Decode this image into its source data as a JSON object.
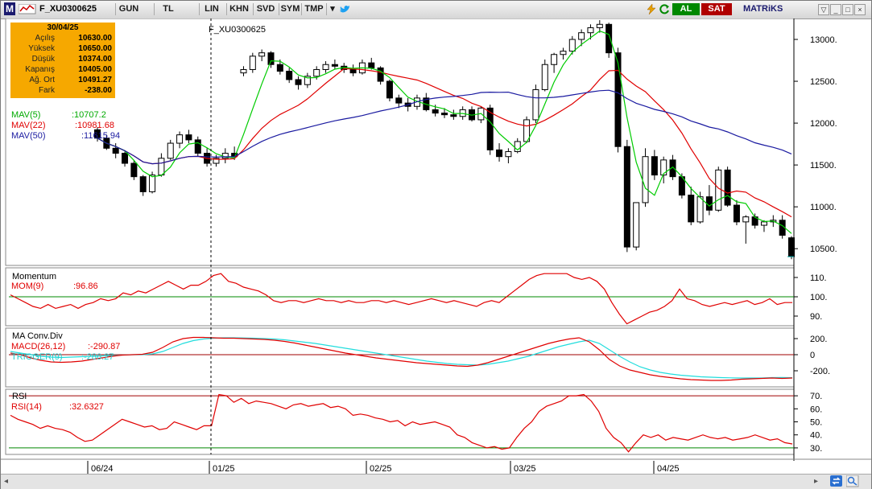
{
  "toolbar": {
    "logo": "M",
    "symbol": "F_XU0300625",
    "buttons": [
      "GUN",
      "TL",
      "LIN",
      "KHN",
      "SVD",
      "SYM",
      "TMP"
    ],
    "buy_label": "AL",
    "sell_label": "SAT",
    "brand": "MATRiKS",
    "brand_color": "#1a1a6e",
    "buy_color": "#008800",
    "sell_color": "#b00000"
  },
  "info": {
    "date": "30/04/25",
    "rows": [
      {
        "label": "Açılış",
        "value": "10630.00"
      },
      {
        "label": "Yüksek",
        "value": "10650.00"
      },
      {
        "label": "Düşük",
        "value": "10374.00"
      },
      {
        "label": "Kapanış",
        "value": "10405.00"
      },
      {
        "label": "Ağ. Ort",
        "value": "10491.27"
      },
      {
        "label": "Fark",
        "value": "-238.00"
      }
    ]
  },
  "price_panel": {
    "symbol_label": "F_XU0300625",
    "legends": [
      {
        "name": "MAV(5)",
        "value": ":10707.2",
        "color": "#00cc00"
      },
      {
        "name": "MAV(22)",
        "value": ":10981.68",
        "color": "#e00000"
      },
      {
        "name": "MAV(50)",
        "value": ":11615.94",
        "color": "#1a1aa0"
      }
    ],
    "y_ticks": [
      "13000.",
      "12500.",
      "12000.",
      "11500.",
      "11000.",
      "10500."
    ]
  },
  "momentum_panel": {
    "title": "Momentum",
    "legend": {
      "name": "MOM(9)",
      "value": ":96.86",
      "color": "#e00000"
    },
    "y_ticks": [
      "110.",
      "100.",
      "90."
    ]
  },
  "macd_panel": {
    "title": "MA Conv.Div",
    "legends": [
      {
        "name": "MACD(26,12)",
        "value": ":-290.87",
        "color": "#e00000"
      },
      {
        "name": "TRIGGER(9)",
        "value": ":-286.27",
        "color": "#22dddd"
      }
    ],
    "y_ticks": [
      "200.",
      "0",
      "-200."
    ]
  },
  "rsi_panel": {
    "title": "RSI",
    "legend": {
      "name": "RSI(14)",
      "value": ":32.6327",
      "color": "#e00000"
    },
    "y_ticks": [
      "70.",
      "60.",
      "50.",
      "40.",
      "30."
    ]
  },
  "x_axis": {
    "labels": [
      "06/24",
      "01/25",
      "02/25",
      "03/25",
      "04/25"
    ]
  },
  "chart_data": {
    "type": "candlestick",
    "symbol": "F_XU0300625",
    "x_labels": [
      "06/24",
      "01/25",
      "02/25",
      "03/25",
      "04/25"
    ],
    "price_ylim": [
      10300,
      13250
    ],
    "last": {
      "date": "30/04/25",
      "open": 10630.0,
      "high": 10650.0,
      "low": 10374.0,
      "close": 10405.0,
      "avg": 10491.27,
      "change": -238.0
    },
    "candles": [
      [
        11920,
        11950,
        11780,
        11820
      ],
      [
        11820,
        11860,
        11680,
        11700
      ],
      [
        11700,
        11760,
        11580,
        11640
      ],
      [
        11640,
        11660,
        11480,
        11520
      ],
      [
        11520,
        11560,
        11320,
        11360
      ],
      [
        11360,
        11380,
        11130,
        11180
      ],
      [
        11180,
        11420,
        11160,
        11380
      ],
      [
        11380,
        11640,
        11360,
        11580
      ],
      [
        11580,
        11800,
        11560,
        11760
      ],
      [
        11760,
        11900,
        11700,
        11860
      ],
      [
        11860,
        11920,
        11760,
        11800
      ],
      [
        11800,
        11840,
        11600,
        11640
      ],
      [
        11640,
        11700,
        11480,
        11520
      ],
      [
        11520,
        11620,
        11480,
        11580
      ],
      [
        11580,
        11700,
        11520,
        11640
      ],
      [
        11640,
        11720,
        11560,
        11600
      ],
      [
        12600,
        12680,
        12560,
        12640
      ],
      [
        12640,
        12840,
        12600,
        12800
      ],
      [
        12800,
        12880,
        12740,
        12840
      ],
      [
        12840,
        12860,
        12660,
        12700
      ],
      [
        12700,
        12760,
        12580,
        12620
      ],
      [
        12620,
        12660,
        12480,
        12520
      ],
      [
        12520,
        12560,
        12400,
        12460
      ],
      [
        12460,
        12600,
        12420,
        12560
      ],
      [
        12560,
        12680,
        12520,
        12640
      ],
      [
        12640,
        12740,
        12600,
        12700
      ],
      [
        12700,
        12760,
        12640,
        12680
      ],
      [
        12680,
        12720,
        12600,
        12640
      ],
      [
        12640,
        12700,
        12560,
        12600
      ],
      [
        12600,
        12760,
        12580,
        12720
      ],
      [
        12720,
        12780,
        12640,
        12660
      ],
      [
        12660,
        12680,
        12460,
        12500
      ],
      [
        12500,
        12520,
        12260,
        12300
      ],
      [
        12300,
        12340,
        12180,
        12240
      ],
      [
        12240,
        12300,
        12140,
        12200
      ],
      [
        12200,
        12340,
        12160,
        12300
      ],
      [
        12300,
        12360,
        12140,
        12160
      ],
      [
        12160,
        12220,
        12080,
        12120
      ],
      [
        12120,
        12180,
        12060,
        12100
      ],
      [
        12100,
        12160,
        12040,
        12080
      ],
      [
        12080,
        12200,
        12040,
        12160
      ],
      [
        12160,
        12200,
        12020,
        12040
      ],
      [
        12040,
        12200,
        12000,
        12180
      ],
      [
        12180,
        12220,
        11620,
        11680
      ],
      [
        11680,
        11760,
        11540,
        11600
      ],
      [
        11600,
        11700,
        11520,
        11660
      ],
      [
        11660,
        11820,
        11640,
        11780
      ],
      [
        11780,
        12080,
        11760,
        12040
      ],
      [
        12040,
        12460,
        12000,
        12400
      ],
      [
        12400,
        12760,
        12380,
        12700
      ],
      [
        12700,
        12840,
        12600,
        12820
      ],
      [
        12820,
        12900,
        12760,
        12860
      ],
      [
        12860,
        13040,
        12820,
        13000
      ],
      [
        13000,
        13120,
        12920,
        13080
      ],
      [
        13080,
        13180,
        13000,
        13140
      ],
      [
        13140,
        13230,
        13080,
        13180
      ],
      [
        13180,
        13200,
        12780,
        12840
      ],
      [
        12840,
        12900,
        11650,
        11720
      ],
      [
        11720,
        11800,
        10460,
        10520
      ],
      [
        10520,
        11050,
        10480,
        11050
      ],
      [
        11050,
        11700,
        11000,
        11600
      ],
      [
        11600,
        11680,
        11320,
        11380
      ],
      [
        11380,
        11600,
        11280,
        11560
      ],
      [
        11560,
        11620,
        11320,
        11360
      ],
      [
        11360,
        11400,
        11100,
        11140
      ],
      [
        11140,
        11240,
        10780,
        10820
      ],
      [
        10820,
        11180,
        10800,
        11120
      ],
      [
        11120,
        11260,
        10900,
        10960
      ],
      [
        10960,
        11480,
        10940,
        11440
      ],
      [
        11440,
        11480,
        11000,
        11020
      ],
      [
        11020,
        11080,
        10780,
        10820
      ],
      [
        10820,
        10900,
        10560,
        10880
      ],
      [
        10880,
        10920,
        10740,
        10780
      ],
      [
        10780,
        10840,
        10700,
        10820
      ],
      [
        10820,
        10900,
        10760,
        10840
      ],
      [
        10840,
        10900,
        10620,
        10660
      ],
      [
        10630,
        10650,
        10374,
        10405
      ]
    ],
    "indicators": {
      "MAV(5)": 10707.2,
      "MAV(22)": 10981.68,
      "MAV(50)": 11615.94,
      "MOM(9)": 96.86,
      "MACD(26,12)": -290.87,
      "TRIGGER(9)": -286.27,
      "RSI(14)": 32.6327
    },
    "momentum_ylim": [
      85,
      115
    ],
    "momentum_series": [
      101,
      99,
      97,
      95,
      94,
      96,
      94,
      95,
      96,
      94,
      96,
      97,
      99,
      98,
      99,
      102,
      101,
      103,
      102,
      104,
      106,
      108,
      106,
      104,
      106,
      106,
      108,
      111,
      112,
      108,
      107,
      105,
      104,
      103,
      101,
      98,
      97,
      98,
      98,
      97,
      98,
      99,
      98,
      98,
      97,
      98,
      97,
      97,
      98,
      98,
      97,
      98,
      97,
      96,
      97,
      98,
      99,
      98,
      97,
      98,
      97,
      96,
      95,
      97,
      98,
      97,
      100,
      103,
      106,
      109,
      111,
      112,
      112,
      112,
      112,
      110,
      109,
      110,
      108,
      104,
      97,
      91,
      86,
      88,
      90,
      92,
      93,
      95,
      98,
      104,
      99,
      98,
      96,
      95,
      96,
      97,
      96,
      97,
      98,
      96,
      97,
      99,
      96,
      97,
      97
    ],
    "macd_ylim": [
      -400,
      330
    ],
    "macd_series": [
      20,
      0,
      -40,
      -70,
      -90,
      -95,
      -90,
      -80,
      -60,
      -40,
      -20,
      -5,
      0,
      5,
      30,
      90,
      160,
      200,
      215,
      215,
      210,
      205,
      205,
      200,
      195,
      190,
      180,
      165,
      145,
      120,
      95,
      70,
      45,
      20,
      0,
      -20,
      -40,
      -55,
      -70,
      -85,
      -100,
      -110,
      -120,
      -130,
      -140,
      -145,
      -130,
      -100,
      -60,
      -20,
      20,
      60,
      100,
      140,
      170,
      195,
      210,
      160,
      60,
      -60,
      -140,
      -190,
      -220,
      -250,
      -270,
      -285,
      -300,
      -310,
      -315,
      -320,
      -320,
      -315,
      -305,
      -300,
      -295,
      -290,
      -295,
      -290
    ],
    "trigger_series": [
      40,
      20,
      0,
      -20,
      -30,
      -35,
      -30,
      -25,
      -20,
      -15,
      -10,
      -5,
      0,
      0,
      10,
      40,
      90,
      140,
      175,
      195,
      205,
      210,
      210,
      208,
      205,
      200,
      195,
      185,
      170,
      155,
      140,
      120,
      100,
      80,
      60,
      40,
      20,
      0,
      -20,
      -40,
      -60,
      -80,
      -95,
      -110,
      -120,
      -125,
      -130,
      -120,
      -100,
      -80,
      -50,
      -20,
      20,
      60,
      100,
      130,
      160,
      180,
      140,
      60,
      -20,
      -90,
      -150,
      -190,
      -220,
      -240,
      -255,
      -265,
      -275,
      -280,
      -285,
      -288,
      -290,
      -290,
      -290,
      -285,
      -283,
      -286
    ],
    "rsi_ylim": [
      25,
      75
    ],
    "rsi_series": [
      55,
      52,
      50,
      48,
      45,
      47,
      45,
      44,
      42,
      38,
      35,
      36,
      40,
      44,
      48,
      52,
      50,
      48,
      46,
      47,
      44,
      45,
      50,
      48,
      46,
      44,
      47,
      47,
      71,
      70,
      65,
      68,
      64,
      66,
      65,
      64,
      62,
      60,
      63,
      64,
      62,
      63,
      64,
      61,
      62,
      60,
      55,
      56,
      55,
      53,
      52,
      50,
      51,
      47,
      50,
      48,
      49,
      50,
      48,
      46,
      40,
      38,
      34,
      32,
      30,
      31,
      29,
      30,
      38,
      45,
      50,
      58,
      62,
      64,
      66,
      70,
      70,
      71,
      66,
      58,
      45,
      38,
      34,
      27,
      34,
      40,
      38,
      40,
      36,
      38,
      37,
      36,
      38,
      40,
      38,
      37,
      38,
      36,
      37,
      38,
      40,
      38,
      36,
      37,
      34,
      33
    ]
  }
}
